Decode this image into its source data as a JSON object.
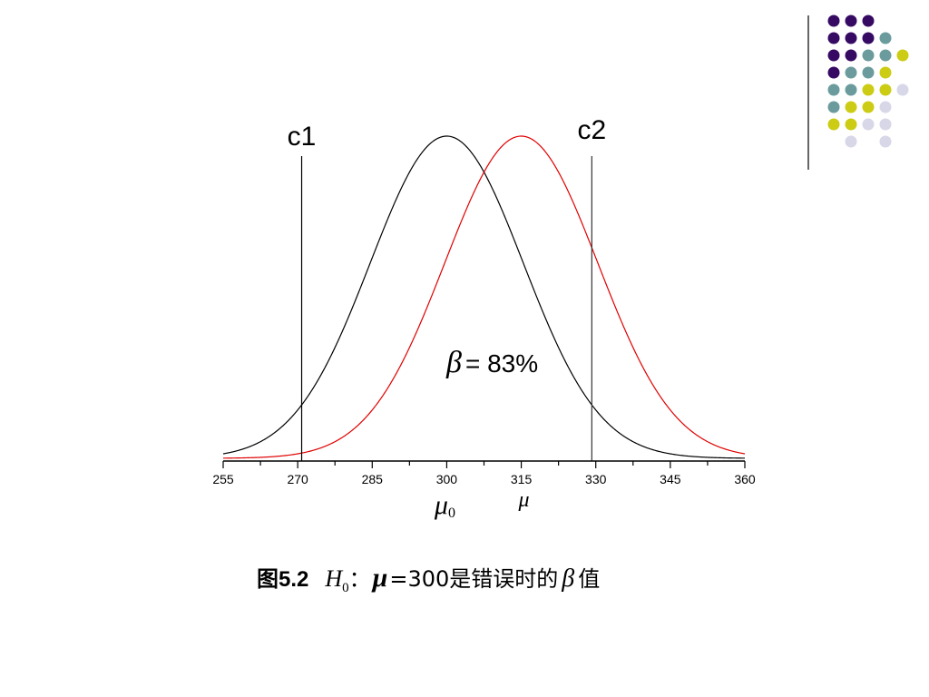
{
  "decoration": {
    "dot_colors": {
      "purple": "#360a63",
      "teal": "#6b9b9c",
      "yellow": "#cccc14",
      "lavender": "#d7d7e8"
    },
    "dot_grid": [
      [
        "purple",
        "purple",
        "purple",
        null,
        null
      ],
      [
        "purple",
        "purple",
        "purple",
        "teal",
        null
      ],
      [
        "purple",
        "purple",
        "teal",
        "teal",
        "yellow"
      ],
      [
        "purple",
        "teal",
        "teal",
        "yellow",
        null
      ],
      [
        "teal",
        "teal",
        "yellow",
        "yellow",
        "lavender"
      ],
      [
        "teal",
        "yellow",
        "yellow",
        "lavender",
        null
      ],
      [
        "yellow",
        "yellow",
        "lavender",
        "lavender",
        null
      ],
      [
        null,
        "lavender",
        null,
        "lavender",
        null
      ]
    ],
    "divider_color": "#333333"
  },
  "chart_data": {
    "type": "line",
    "xlim": [
      255,
      360
    ],
    "x_ticks": [
      255,
      270,
      285,
      300,
      315,
      330,
      345,
      360
    ],
    "x_tick_labels": [
      "255",
      "270",
      "285",
      "300",
      "315",
      "330",
      "345",
      "360"
    ],
    "series": [
      {
        "mean": 300,
        "sd": 15.4,
        "color": "#000000"
      },
      {
        "mean": 315,
        "sd": 15.4,
        "color": "#e00000"
      }
    ],
    "critical_lines": [
      {
        "label": "c1",
        "x": 270.8,
        "color": "#000000"
      },
      {
        "label": "c2",
        "x": 329.2,
        "color": "#333333"
      }
    ],
    "annotation": {
      "symbol": "β",
      "text": "= 83%"
    },
    "axis_markers": [
      {
        "symbol": "μ",
        "subscript": "0",
        "x": 300
      },
      {
        "symbol": "μ",
        "subscript": "",
        "x": 315
      }
    ]
  },
  "caption": {
    "fig_num": "图5.2",
    "h_symbol": "H",
    "h_sub": "0",
    "colon": "：",
    "mu": "μ",
    "text_mid": "=300是错误时的",
    "beta": "β",
    "text_end": " 值"
  }
}
